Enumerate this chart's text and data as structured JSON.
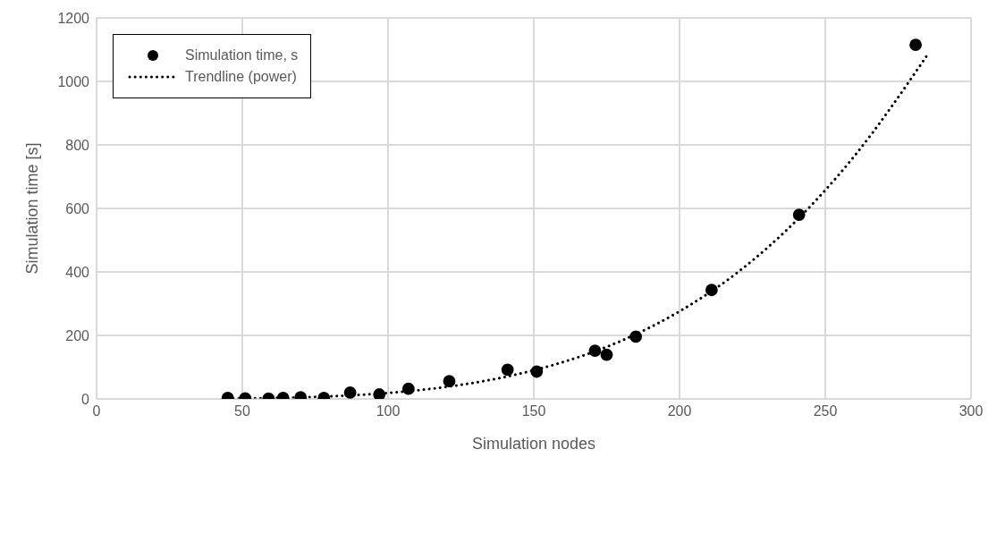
{
  "chart_data": {
    "type": "scatter",
    "xlabel": "Simulation nodes",
    "ylabel": "Simulation time [s]",
    "xlim": [
      0,
      300
    ],
    "xticks": [
      0,
      50,
      100,
      150,
      200,
      250,
      300
    ],
    "ylim": [
      0,
      1200
    ],
    "yticks": [
      0,
      200,
      400,
      600,
      800,
      1000,
      1200
    ],
    "grid": true,
    "legend": "top left",
    "series": [
      {
        "name": "Simulation time, s",
        "color": "#000000",
        "marker": "circle",
        "x": [
          45,
          51,
          59,
          64,
          70,
          78,
          87,
          97,
          107,
          121,
          141,
          151,
          171,
          175,
          185,
          211,
          241,
          281
        ],
        "values": [
          3,
          2,
          1,
          3,
          5,
          3,
          20,
          14,
          32,
          56,
          92,
          86,
          152,
          139,
          196,
          343,
          580,
          1115
        ]
      },
      {
        "type": "line",
        "name": "Trendline (power)",
        "color": "#000000",
        "marker": "none",
        "line_style": "dotted",
        "x": [
          45,
          60,
          80,
          100,
          120,
          140,
          160,
          180,
          200,
          220,
          240,
          260,
          285
        ],
        "values": [
          1,
          3,
          8,
          19,
          38,
          69,
          116,
          183,
          276,
          399,
          561,
          765,
          1083
        ]
      }
    ]
  }
}
